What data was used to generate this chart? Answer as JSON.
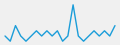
{
  "values": [
    2,
    1,
    4,
    2,
    1,
    2,
    3,
    2,
    3,
    2,
    3,
    1,
    2,
    8,
    2,
    1,
    2,
    3,
    2,
    3,
    2,
    4
  ],
  "line_color": "#1b9dd9",
  "bg_color": "#f0f0f0",
  "linewidth": 1.0
}
